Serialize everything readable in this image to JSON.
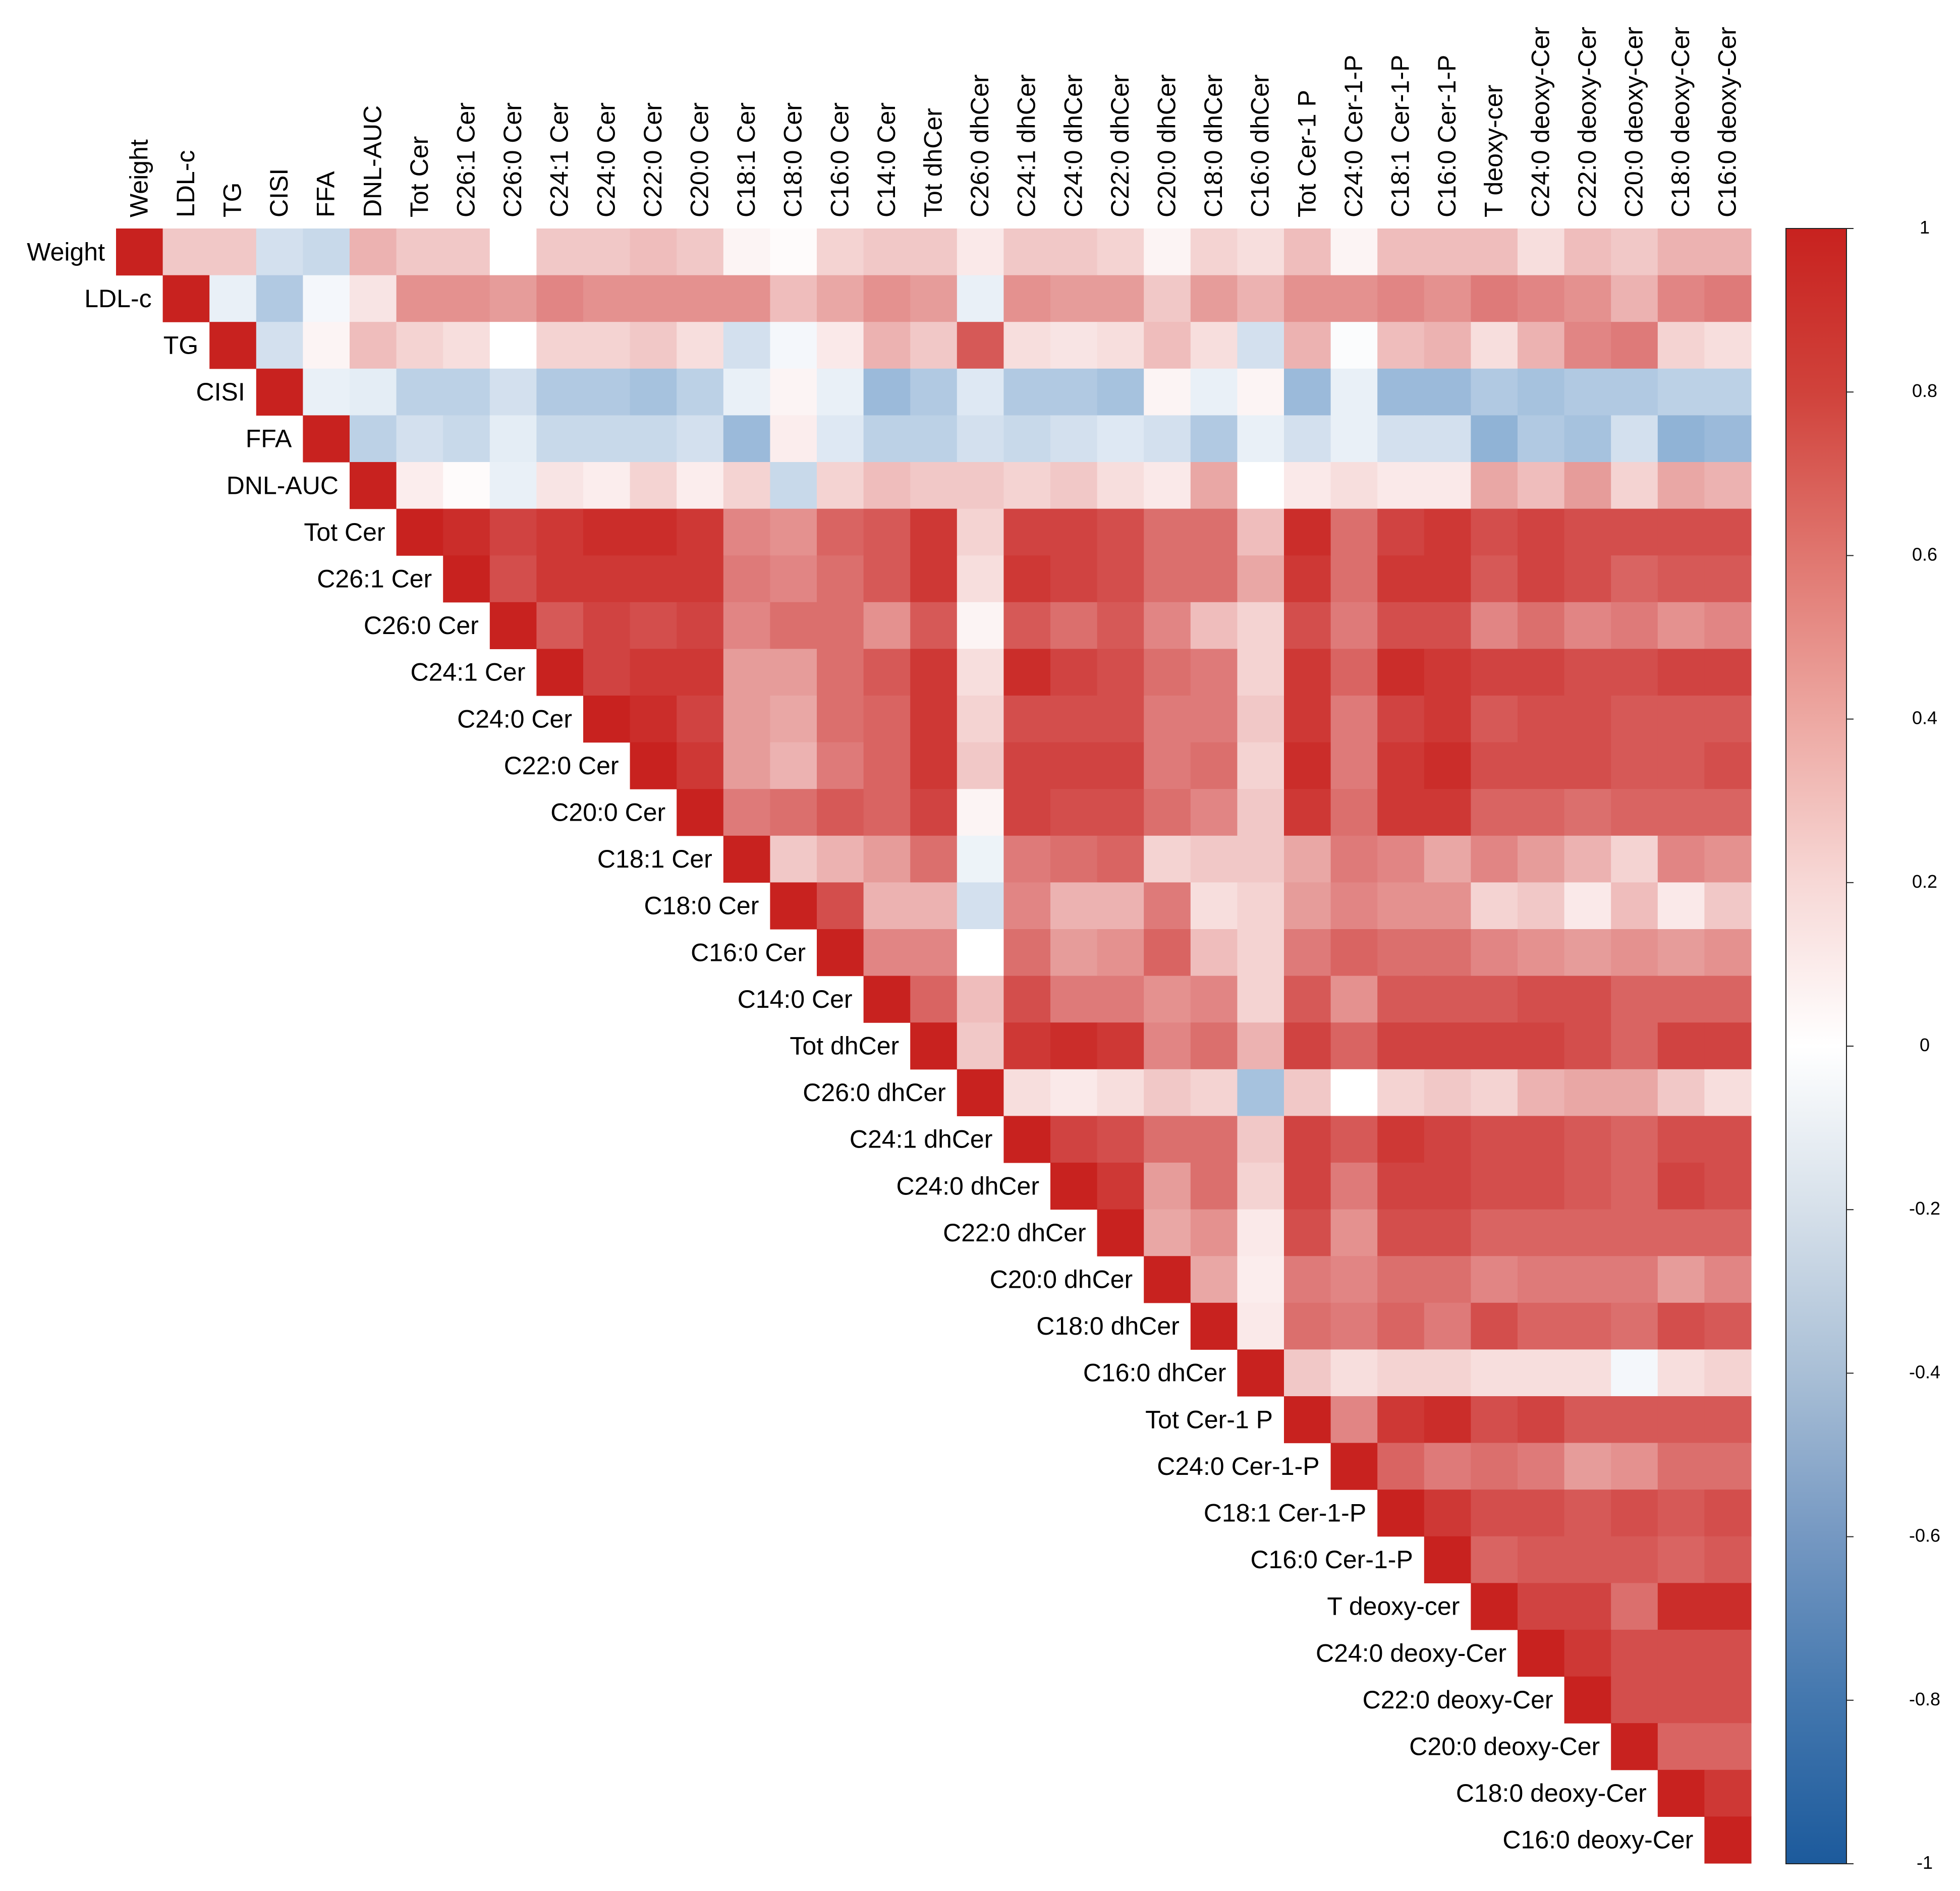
{
  "chart_data": {
    "type": "heatmap",
    "variables": [
      "Weight",
      "LDL-c",
      "TG",
      "CISI",
      "FFA",
      "DNL-AUC",
      "Tot Cer",
      "C26:1 Cer",
      "C26:0 Cer",
      "C24:1 Cer",
      "C24:0 Cer",
      "C22:0 Cer",
      "C20:0 Cer",
      "C18:1 Cer",
      "C18:0 Cer",
      "C16:0 Cer",
      "C14:0 Cer",
      "Tot dhCer",
      "C26:0 dhCer",
      "C24:1 dhCer",
      "C24:0 dhCer",
      "C22:0 dhCer",
      "C20:0 dhCer",
      "C18:0 dhCer",
      "C16:0 dhCer",
      "Tot Cer-1 P",
      "C24:0 Cer-1-P",
      "C18:1 Cer-1-P",
      "C16:0 Cer-1-P",
      "T deoxy-cer",
      "C24:0 deoxy-Cer",
      "C22:0 deoxy-Cer",
      "C20:0 deoxy-Cer",
      "C18:0 deoxy-Cer",
      "C16:0 deoxy-Cer"
    ],
    "layout": "upper-triangle",
    "colorbar": {
      "range": [
        -1,
        1
      ],
      "ticks": [
        "1",
        "0.8",
        "0.6",
        "0.4",
        "0.2",
        "0",
        "-0.2",
        "-0.4",
        "-0.6",
        "-0.8",
        "-1"
      ],
      "colors": {
        "low": "#2166ac",
        "mid": "#ffffff",
        "high": "#c8221f"
      }
    },
    "matrix": [
      [
        1,
        0.25,
        0.25,
        -0.2,
        -0.25,
        0.35,
        0.25,
        0.25,
        0,
        0.25,
        0.25,
        0.3,
        0.25,
        0.05,
        0.02,
        0.2,
        0.25,
        0.25,
        0.1,
        0.25,
        0.25,
        0.2,
        0.05,
        0.2,
        0.15,
        0.3,
        0.05,
        0.3,
        0.3,
        0.3,
        0.15,
        0.3,
        0.25,
        0.35,
        0.35
      ],
      [
        null,
        1,
        -0.1,
        -0.35,
        -0.05,
        0.12,
        0.5,
        0.5,
        0.45,
        0.55,
        0.5,
        0.5,
        0.5,
        0.5,
        0.3,
        0.4,
        0.5,
        0.45,
        -0.1,
        0.5,
        0.45,
        0.45,
        0.25,
        0.45,
        0.35,
        0.5,
        0.5,
        0.55,
        0.5,
        0.6,
        0.55,
        0.5,
        0.35,
        0.55,
        0.6
      ],
      [
        null,
        null,
        1,
        -0.2,
        0.05,
        0.3,
        0.2,
        0.15,
        0,
        0.2,
        0.2,
        0.25,
        0.15,
        -0.2,
        -0.05,
        0.1,
        0.35,
        0.25,
        0.75,
        0.15,
        0.12,
        0.15,
        0.3,
        0.15,
        -0.2,
        0.35,
        -0.02,
        0.3,
        0.35,
        0.15,
        0.35,
        0.55,
        0.6,
        0.2,
        0.15
      ],
      [
        null,
        null,
        null,
        1,
        -0.1,
        -0.12,
        -0.3,
        -0.3,
        -0.2,
        -0.35,
        -0.35,
        -0.4,
        -0.3,
        -0.1,
        0.05,
        -0.1,
        -0.45,
        -0.35,
        -0.15,
        -0.35,
        -0.35,
        -0.4,
        0.05,
        -0.1,
        0.05,
        -0.45,
        -0.1,
        -0.45,
        -0.45,
        -0.35,
        -0.4,
        -0.35,
        -0.35,
        -0.3,
        -0.3
      ],
      [
        null,
        null,
        null,
        null,
        1,
        -0.3,
        -0.2,
        -0.25,
        -0.12,
        -0.25,
        -0.25,
        -0.25,
        -0.2,
        -0.45,
        0.08,
        -0.15,
        -0.3,
        -0.3,
        -0.2,
        -0.25,
        -0.2,
        -0.15,
        -0.2,
        -0.35,
        -0.1,
        -0.2,
        -0.1,
        -0.2,
        -0.2,
        -0.5,
        -0.35,
        -0.4,
        -0.2,
        -0.5,
        -0.45
      ],
      [
        null,
        null,
        null,
        null,
        null,
        1,
        0.08,
        0.02,
        -0.1,
        0.12,
        0.08,
        0.2,
        0.08,
        0.2,
        -0.25,
        0.2,
        0.3,
        0.25,
        0.25,
        0.2,
        0.25,
        0.15,
        0.1,
        0.4,
        0,
        0.1,
        0.15,
        0.1,
        0.1,
        0.4,
        0.3,
        0.45,
        0.2,
        0.4,
        0.35
      ],
      [
        null,
        null,
        null,
        null,
        null,
        null,
        1,
        0.95,
        0.85,
        0.9,
        0.95,
        0.95,
        0.9,
        0.55,
        0.5,
        0.7,
        0.75,
        0.9,
        0.2,
        0.85,
        0.85,
        0.8,
        0.65,
        0.65,
        0.3,
        0.95,
        0.65,
        0.85,
        0.9,
        0.8,
        0.85,
        0.8,
        0.8,
        0.8,
        0.8
      ],
      [
        null,
        null,
        null,
        null,
        null,
        null,
        null,
        1,
        0.8,
        0.9,
        0.9,
        0.9,
        0.9,
        0.6,
        0.55,
        0.65,
        0.75,
        0.9,
        0.15,
        0.9,
        0.85,
        0.8,
        0.65,
        0.65,
        0.4,
        0.9,
        0.65,
        0.9,
        0.9,
        0.75,
        0.85,
        0.8,
        0.7,
        0.75,
        0.75
      ],
      [
        null,
        null,
        null,
        null,
        null,
        null,
        null,
        null,
        1,
        0.75,
        0.85,
        0.8,
        0.85,
        0.55,
        0.65,
        0.65,
        0.5,
        0.75,
        0.05,
        0.75,
        0.65,
        0.75,
        0.55,
        0.3,
        0.2,
        0.8,
        0.6,
        0.8,
        0.8,
        0.55,
        0.65,
        0.55,
        0.6,
        0.5,
        0.55
      ],
      [
        null,
        null,
        null,
        null,
        null,
        null,
        null,
        null,
        null,
        1,
        0.85,
        0.9,
        0.9,
        0.45,
        0.45,
        0.65,
        0.75,
        0.9,
        0.15,
        0.95,
        0.85,
        0.8,
        0.65,
        0.6,
        0.2,
        0.9,
        0.7,
        0.95,
        0.9,
        0.85,
        0.85,
        0.8,
        0.8,
        0.85,
        0.85
      ],
      [
        null,
        null,
        null,
        null,
        null,
        null,
        null,
        null,
        null,
        null,
        1,
        0.95,
        0.85,
        0.45,
        0.4,
        0.65,
        0.7,
        0.9,
        0.2,
        0.8,
        0.8,
        0.8,
        0.6,
        0.6,
        0.25,
        0.9,
        0.6,
        0.85,
        0.9,
        0.75,
        0.8,
        0.8,
        0.75,
        0.75,
        0.75
      ],
      [
        null,
        null,
        null,
        null,
        null,
        null,
        null,
        null,
        null,
        null,
        null,
        1,
        0.9,
        0.45,
        0.35,
        0.6,
        0.7,
        0.9,
        0.25,
        0.85,
        0.85,
        0.85,
        0.6,
        0.65,
        0.2,
        0.95,
        0.6,
        0.9,
        0.95,
        0.8,
        0.8,
        0.8,
        0.75,
        0.75,
        0.8
      ],
      [
        null,
        null,
        null,
        null,
        null,
        null,
        null,
        null,
        null,
        null,
        null,
        null,
        1,
        0.6,
        0.65,
        0.75,
        0.7,
        0.85,
        0.05,
        0.85,
        0.8,
        0.8,
        0.65,
        0.55,
        0.25,
        0.9,
        0.65,
        0.9,
        0.9,
        0.7,
        0.7,
        0.65,
        0.7,
        0.7,
        0.7
      ],
      [
        null,
        null,
        null,
        null,
        null,
        null,
        null,
        null,
        null,
        null,
        null,
        null,
        null,
        1,
        0.25,
        0.35,
        0.45,
        0.65,
        -0.08,
        0.6,
        0.65,
        0.7,
        0.2,
        0.25,
        0.25,
        0.4,
        0.6,
        0.55,
        0.4,
        0.55,
        0.45,
        0.35,
        0.2,
        0.55,
        0.5
      ],
      [
        null,
        null,
        null,
        null,
        null,
        null,
        null,
        null,
        null,
        null,
        null,
        null,
        null,
        null,
        1,
        0.8,
        0.35,
        0.35,
        -0.2,
        0.55,
        0.35,
        0.35,
        0.6,
        0.15,
        0.2,
        0.45,
        0.55,
        0.5,
        0.5,
        0.2,
        0.25,
        0.1,
        0.3,
        0.1,
        0.25
      ],
      [
        null,
        null,
        null,
        null,
        null,
        null,
        null,
        null,
        null,
        null,
        null,
        null,
        null,
        null,
        null,
        1,
        0.55,
        0.55,
        0,
        0.65,
        0.45,
        0.5,
        0.7,
        0.3,
        0.2,
        0.6,
        0.7,
        0.65,
        0.65,
        0.55,
        0.5,
        0.45,
        0.5,
        0.45,
        0.5
      ],
      [
        null,
        null,
        null,
        null,
        null,
        null,
        null,
        null,
        null,
        null,
        null,
        null,
        null,
        null,
        null,
        null,
        1,
        0.7,
        0.3,
        0.8,
        0.6,
        0.6,
        0.5,
        0.55,
        0.2,
        0.75,
        0.5,
        0.75,
        0.75,
        0.75,
        0.8,
        0.8,
        0.7,
        0.7,
        0.7
      ],
      [
        null,
        null,
        null,
        null,
        null,
        null,
        null,
        null,
        null,
        null,
        null,
        null,
        null,
        null,
        null,
        null,
        null,
        1,
        0.25,
        0.9,
        0.95,
        0.9,
        0.55,
        0.65,
        0.35,
        0.85,
        0.7,
        0.85,
        0.85,
        0.85,
        0.85,
        0.8,
        0.7,
        0.85,
        0.85
      ],
      [
        null,
        null,
        null,
        null,
        null,
        null,
        null,
        null,
        null,
        null,
        null,
        null,
        null,
        null,
        null,
        null,
        null,
        null,
        1,
        0.15,
        0.1,
        0.15,
        0.25,
        0.2,
        -0.4,
        0.25,
        0,
        0.2,
        0.25,
        0.2,
        0.35,
        0.4,
        0.4,
        0.25,
        0.15
      ],
      [
        null,
        null,
        null,
        null,
        null,
        null,
        null,
        null,
        null,
        null,
        null,
        null,
        null,
        null,
        null,
        null,
        null,
        null,
        null,
        1,
        0.85,
        0.8,
        0.65,
        0.65,
        0.25,
        0.85,
        0.75,
        0.9,
        0.85,
        0.8,
        0.8,
        0.75,
        0.7,
        0.8,
        0.8
      ],
      [
        null,
        null,
        null,
        null,
        null,
        null,
        null,
        null,
        null,
        null,
        null,
        null,
        null,
        null,
        null,
        null,
        null,
        null,
        null,
        null,
        1,
        0.9,
        0.45,
        0.65,
        0.2,
        0.85,
        0.6,
        0.85,
        0.85,
        0.8,
        0.8,
        0.75,
        0.7,
        0.85,
        0.8
      ],
      [
        null,
        null,
        null,
        null,
        null,
        null,
        null,
        null,
        null,
        null,
        null,
        null,
        null,
        null,
        null,
        null,
        null,
        null,
        null,
        null,
        null,
        1,
        0.4,
        0.5,
        0.1,
        0.8,
        0.5,
        0.8,
        0.8,
        0.7,
        0.7,
        0.7,
        0.7,
        0.7,
        0.7
      ],
      [
        null,
        null,
        null,
        null,
        null,
        null,
        null,
        null,
        null,
        null,
        null,
        null,
        null,
        null,
        null,
        null,
        null,
        null,
        null,
        null,
        null,
        null,
        1,
        0.4,
        0.08,
        0.6,
        0.55,
        0.65,
        0.65,
        0.55,
        0.6,
        0.6,
        0.6,
        0.45,
        0.55
      ],
      [
        null,
        null,
        null,
        null,
        null,
        null,
        null,
        null,
        null,
        null,
        null,
        null,
        null,
        null,
        null,
        null,
        null,
        null,
        null,
        null,
        null,
        null,
        null,
        1,
        0.1,
        0.65,
        0.6,
        0.7,
        0.6,
        0.8,
        0.7,
        0.7,
        0.65,
        0.8,
        0.75
      ],
      [
        null,
        null,
        null,
        null,
        null,
        null,
        null,
        null,
        null,
        null,
        null,
        null,
        null,
        null,
        null,
        null,
        null,
        null,
        null,
        null,
        null,
        null,
        null,
        null,
        1,
        0.25,
        0.15,
        0.2,
        0.2,
        0.15,
        0.15,
        0.15,
        -0.05,
        0.15,
        0.2
      ],
      [
        null,
        null,
        null,
        null,
        null,
        null,
        null,
        null,
        null,
        null,
        null,
        null,
        null,
        null,
        null,
        null,
        null,
        null,
        null,
        null,
        null,
        null,
        null,
        null,
        null,
        1,
        0.55,
        0.9,
        0.95,
        0.8,
        0.85,
        0.75,
        0.75,
        0.75,
        0.75
      ],
      [
        null,
        null,
        null,
        null,
        null,
        null,
        null,
        null,
        null,
        null,
        null,
        null,
        null,
        null,
        null,
        null,
        null,
        null,
        null,
        null,
        null,
        null,
        null,
        null,
        null,
        null,
        1,
        0.7,
        0.6,
        0.65,
        0.6,
        0.45,
        0.5,
        0.65,
        0.65
      ],
      [
        null,
        null,
        null,
        null,
        null,
        null,
        null,
        null,
        null,
        null,
        null,
        null,
        null,
        null,
        null,
        null,
        null,
        null,
        null,
        null,
        null,
        null,
        null,
        null,
        null,
        null,
        null,
        1,
        0.9,
        0.8,
        0.8,
        0.75,
        0.8,
        0.75,
        0.8
      ],
      [
        null,
        null,
        null,
        null,
        null,
        null,
        null,
        null,
        null,
        null,
        null,
        null,
        null,
        null,
        null,
        null,
        null,
        null,
        null,
        null,
        null,
        null,
        null,
        null,
        null,
        null,
        null,
        null,
        1,
        0.7,
        0.75,
        0.75,
        0.75,
        0.7,
        0.75
      ],
      [
        null,
        null,
        null,
        null,
        null,
        null,
        null,
        null,
        null,
        null,
        null,
        null,
        null,
        null,
        null,
        null,
        null,
        null,
        null,
        null,
        null,
        null,
        null,
        null,
        null,
        null,
        null,
        null,
        null,
        1,
        0.85,
        0.85,
        0.65,
        0.95,
        0.95
      ],
      [
        null,
        null,
        null,
        null,
        null,
        null,
        null,
        null,
        null,
        null,
        null,
        null,
        null,
        null,
        null,
        null,
        null,
        null,
        null,
        null,
        null,
        null,
        null,
        null,
        null,
        null,
        null,
        null,
        null,
        null,
        1,
        0.9,
        0.8,
        0.8,
        0.8
      ],
      [
        null,
        null,
        null,
        null,
        null,
        null,
        null,
        null,
        null,
        null,
        null,
        null,
        null,
        null,
        null,
        null,
        null,
        null,
        null,
        null,
        null,
        null,
        null,
        null,
        null,
        null,
        null,
        null,
        null,
        null,
        null,
        1,
        0.8,
        0.8,
        0.8
      ],
      [
        null,
        null,
        null,
        null,
        null,
        null,
        null,
        null,
        null,
        null,
        null,
        null,
        null,
        null,
        null,
        null,
        null,
        null,
        null,
        null,
        null,
        null,
        null,
        null,
        null,
        null,
        null,
        null,
        null,
        null,
        null,
        null,
        1,
        0.7,
        0.7
      ],
      [
        null,
        null,
        null,
        null,
        null,
        null,
        null,
        null,
        null,
        null,
        null,
        null,
        null,
        null,
        null,
        null,
        null,
        null,
        null,
        null,
        null,
        null,
        null,
        null,
        null,
        null,
        null,
        null,
        null,
        null,
        null,
        null,
        null,
        1,
        0.9
      ],
      [
        null,
        null,
        null,
        null,
        null,
        null,
        null,
        null,
        null,
        null,
        null,
        null,
        null,
        null,
        null,
        null,
        null,
        null,
        null,
        null,
        null,
        null,
        null,
        null,
        null,
        null,
        null,
        null,
        null,
        null,
        null,
        null,
        null,
        null,
        1
      ]
    ]
  }
}
